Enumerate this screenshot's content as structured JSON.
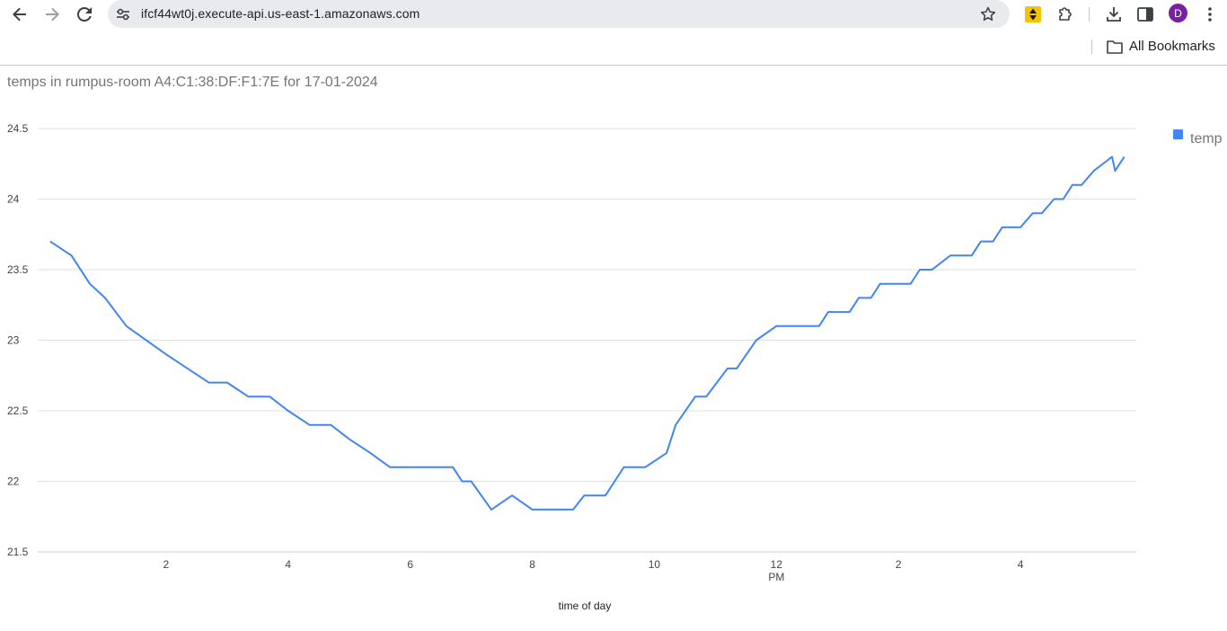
{
  "browser": {
    "url": "ifcf44wt0j.execute-api.us-east-1.amazonaws.com",
    "avatar_letter": "D",
    "bookmarks_label": "All Bookmarks"
  },
  "colors": {
    "series": "#4285f4",
    "grid": "#e0e0e0",
    "avatar": "#7b1fa2"
  },
  "icons": [
    "back-icon",
    "forward-icon",
    "reload-icon",
    "site-settings-icon",
    "star-icon",
    "extension-icon",
    "puzzle-icon",
    "download-icon",
    "sidebar-icon",
    "menu-icon",
    "folder-icon"
  ],
  "chart_data": {
    "type": "line",
    "title": "temps in rumpus-room A4:C1:38:DF:F1:7E for 17-01-2024",
    "xlabel": "time of day",
    "ylabel": "",
    "ylim": [
      21.5,
      24.5
    ],
    "y_ticks": [
      "24.5",
      "24",
      "23.5",
      "23",
      "22.5",
      "22",
      "21.5"
    ],
    "x_ticks": [
      {
        "hour": 2,
        "label": "2",
        "sub": ""
      },
      {
        "hour": 4,
        "label": "4",
        "sub": ""
      },
      {
        "hour": 6,
        "label": "6",
        "sub": ""
      },
      {
        "hour": 8,
        "label": "8",
        "sub": ""
      },
      {
        "hour": 10,
        "label": "10",
        "sub": ""
      },
      {
        "hour": 12,
        "label": "12",
        "sub": "PM"
      },
      {
        "hour": 14,
        "label": "2",
        "sub": ""
      },
      {
        "hour": 16,
        "label": "4",
        "sub": ""
      }
    ],
    "xlim_hours": [
      0,
      18
    ],
    "legend": {
      "position": "right",
      "entries": [
        "temp"
      ]
    },
    "grid": true,
    "series": [
      {
        "name": "temp",
        "x": [
          0.1,
          0.45,
          0.75,
          1.0,
          1.35,
          2.0,
          2.7,
          3.0,
          3.35,
          3.7,
          4.0,
          4.35,
          4.7,
          5.0,
          5.35,
          5.67,
          6.0,
          6.35,
          6.7,
          6.85,
          7.0,
          7.33,
          7.67,
          8.0,
          8.33,
          8.67,
          8.85,
          9.2,
          9.35,
          9.5,
          9.85,
          10.2,
          10.35,
          10.67,
          10.85,
          11.2,
          11.35,
          11.67,
          12.0,
          12.35,
          12.7,
          12.85,
          13.2,
          13.35,
          13.55,
          13.7,
          14.0,
          14.2,
          14.35,
          14.55,
          14.85,
          15.2,
          15.35,
          15.55,
          15.7,
          16.0,
          16.2,
          16.35,
          16.55,
          16.7,
          16.85,
          17.0,
          17.2,
          17.35,
          17.5,
          17.55,
          17.7
        ],
        "y": [
          23.7,
          23.6,
          23.4,
          23.3,
          23.1,
          22.9,
          22.7,
          22.7,
          22.6,
          22.6,
          22.5,
          22.4,
          22.4,
          22.3,
          22.2,
          22.1,
          22.1,
          22.1,
          22.1,
          22.0,
          22.0,
          21.8,
          21.9,
          21.8,
          21.8,
          21.8,
          21.9,
          21.9,
          22.0,
          22.1,
          22.1,
          22.2,
          22.4,
          22.6,
          22.6,
          22.8,
          22.8,
          23.0,
          23.1,
          23.1,
          23.1,
          23.2,
          23.2,
          23.3,
          23.3,
          23.4,
          23.4,
          23.4,
          23.5,
          23.5,
          23.6,
          23.6,
          23.7,
          23.7,
          23.8,
          23.8,
          23.9,
          23.9,
          24.0,
          24.0,
          24.1,
          24.1,
          24.2,
          24.25,
          24.3,
          24.2,
          24.3
        ]
      }
    ]
  }
}
